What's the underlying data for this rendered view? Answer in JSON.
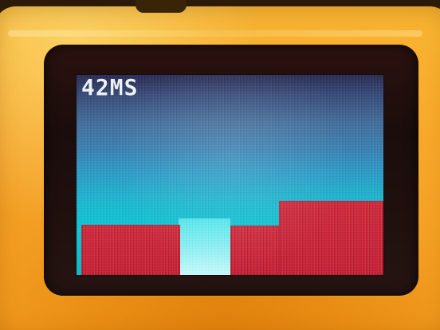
{
  "screen": {
    "fps_text": "42MS"
  }
}
